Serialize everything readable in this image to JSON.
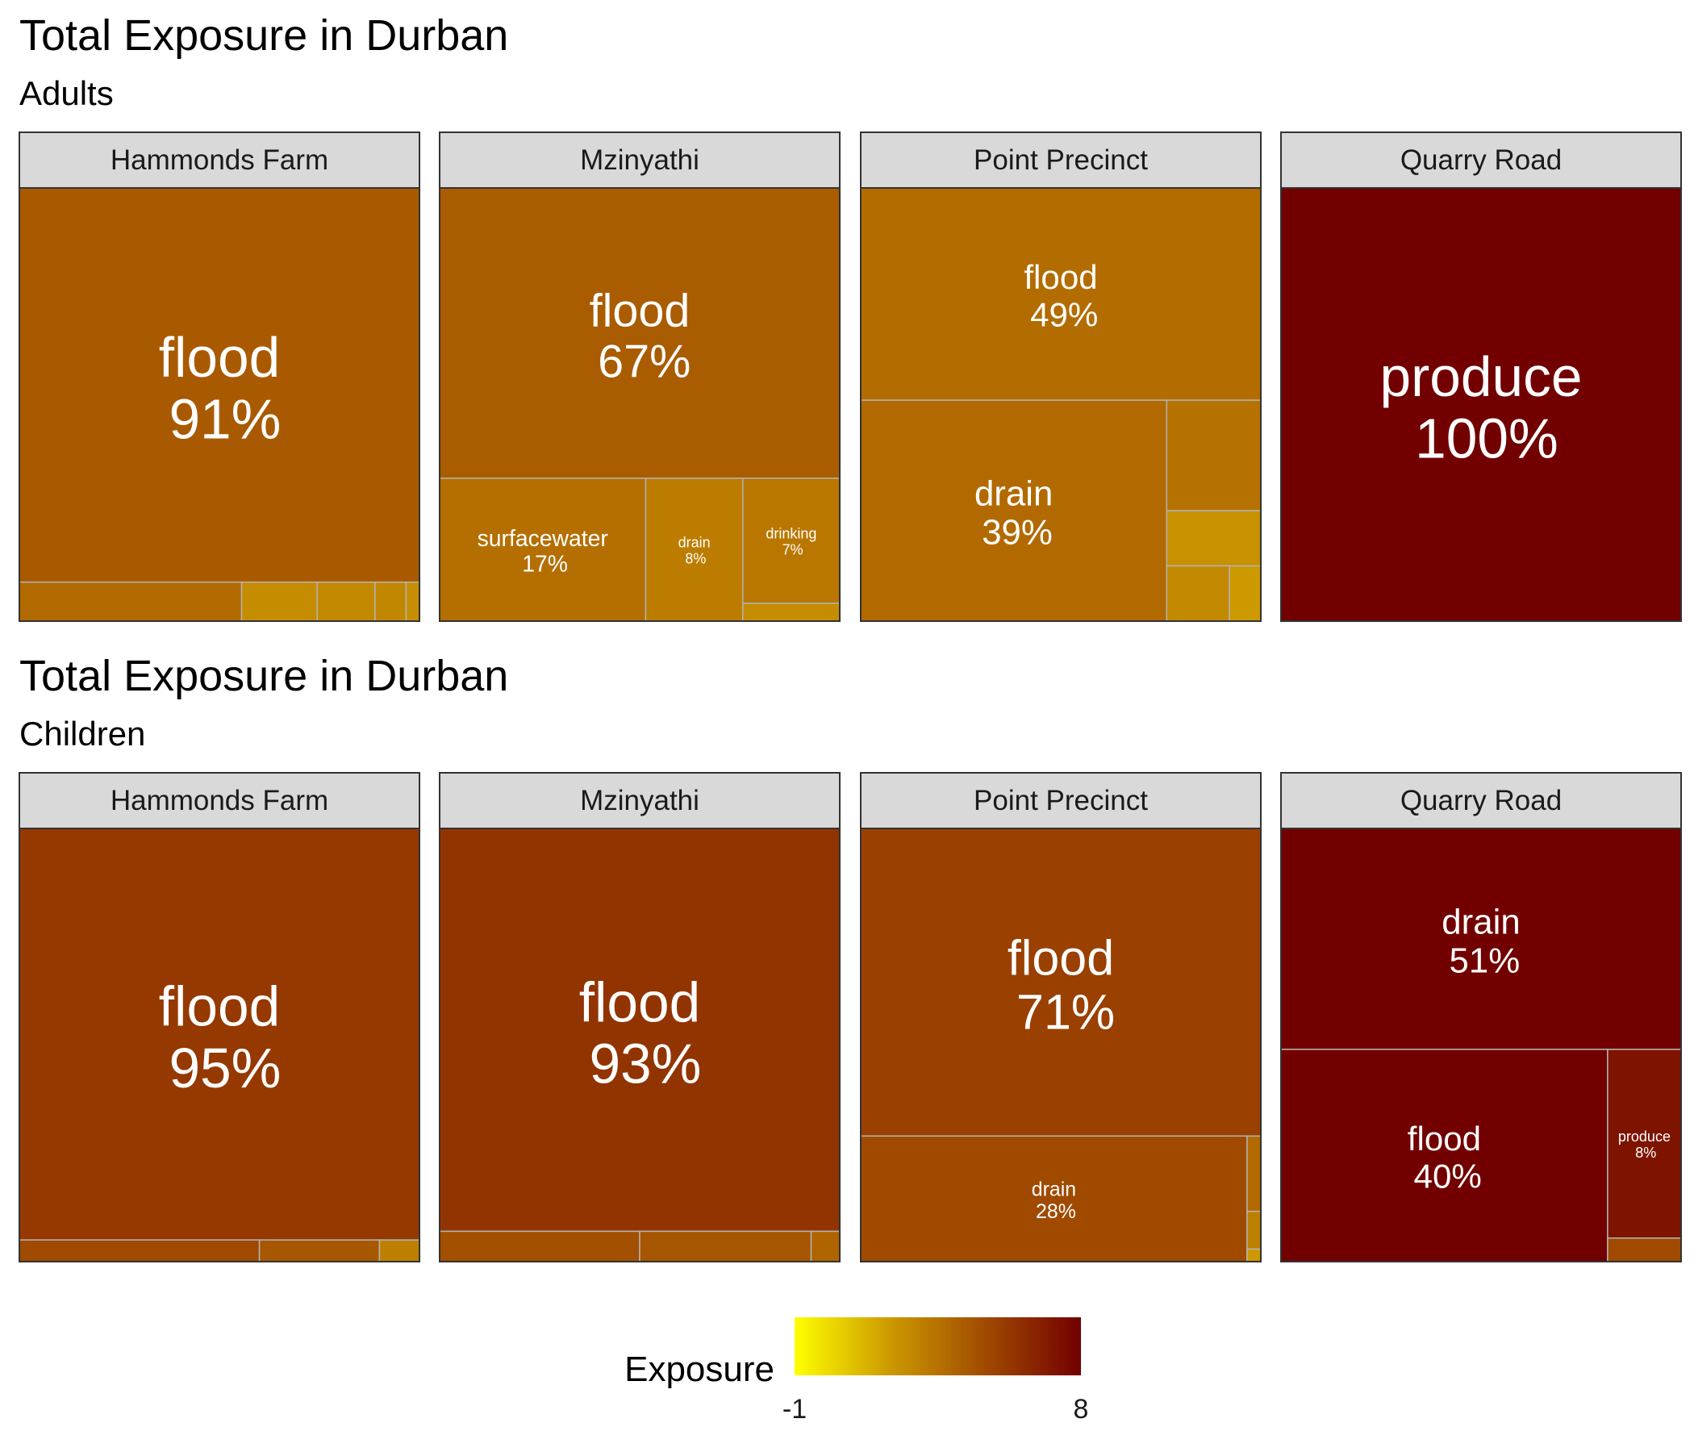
{
  "chart_data": [
    {
      "type": "treemap",
      "title": "Total Exposure in Durban",
      "subtitle": "Adults",
      "facets": [
        {
          "name": "Hammonds Farm",
          "tiles": [
            {
              "label": "flood",
              "percent": "91%",
              "share": 0.91,
              "exposure": 4.4
            },
            {
              "label": "",
              "percent": "",
              "share": 0.05,
              "exposure": 3.8
            },
            {
              "label": "",
              "percent": "",
              "share": 0.017,
              "exposure": 2.5
            },
            {
              "label": "",
              "percent": "",
              "share": 0.013,
              "exposure": 2.6
            },
            {
              "label": "",
              "percent": "",
              "share": 0.007,
              "exposure": 2.7
            },
            {
              "label": "",
              "percent": "",
              "share": 0.003,
              "exposure": 2.4
            }
          ]
        },
        {
          "name": "Mzinyathi",
          "tiles": [
            {
              "label": "flood",
              "percent": "67%",
              "share": 0.67,
              "exposure": 4.3
            },
            {
              "label": "surfacewater",
              "percent": "17%",
              "share": 0.17,
              "exposure": 3.6
            },
            {
              "label": "drain",
              "percent": "8%",
              "share": 0.08,
              "exposure": 3.1
            },
            {
              "label": "drinking",
              "percent": "7%",
              "share": 0.07,
              "exposure": 3.3
            },
            {
              "label": "",
              "percent": "",
              "share": 0.01,
              "exposure": 2.5
            }
          ]
        },
        {
          "name": "Point Precinct",
          "tiles": [
            {
              "label": "flood",
              "percent": "49%",
              "share": 0.49,
              "exposure": 3.7
            },
            {
              "label": "drain",
              "percent": "39%",
              "share": 0.39,
              "exposure": 3.8
            },
            {
              "label": "",
              "percent": "",
              "share": 0.06,
              "exposure": 3.5
            },
            {
              "label": "",
              "percent": "",
              "share": 0.03,
              "exposure": 2.3
            },
            {
              "label": "",
              "percent": "",
              "share": 0.02,
              "exposure": 2.6
            },
            {
              "label": "",
              "percent": "",
              "share": 0.01,
              "exposure": 2.0
            }
          ]
        },
        {
          "name": "Quarry Road",
          "tiles": [
            {
              "label": "produce",
              "percent": "100%",
              "share": 1.0,
              "exposure": 8.0
            }
          ]
        }
      ]
    },
    {
      "type": "treemap",
      "title": "Total Exposure in Durban",
      "subtitle": "Children",
      "facets": [
        {
          "name": "Hammonds Farm",
          "tiles": [
            {
              "label": "flood",
              "percent": "95%",
              "share": 0.95,
              "exposure": 5.7
            },
            {
              "label": "",
              "percent": "",
              "share": 0.03,
              "exposure": 5.0
            },
            {
              "label": "",
              "percent": "",
              "share": 0.015,
              "exposure": 4.5
            },
            {
              "label": "",
              "percent": "",
              "share": 0.005,
              "exposure": 3.0
            }
          ]
        },
        {
          "name": "Mzinyathi",
          "tiles": [
            {
              "label": "flood",
              "percent": "93%",
              "share": 0.93,
              "exposure": 5.9
            },
            {
              "label": "",
              "percent": "",
              "share": 0.035,
              "exposure": 4.8
            },
            {
              "label": "",
              "percent": "",
              "share": 0.03,
              "exposure": 4.6
            },
            {
              "label": "",
              "percent": "",
              "share": 0.005,
              "exposure": 4.0
            }
          ]
        },
        {
          "name": "Point Precinct",
          "tiles": [
            {
              "label": "flood",
              "percent": "71%",
              "share": 0.71,
              "exposure": 5.4
            },
            {
              "label": "drain",
              "percent": "28%",
              "share": 0.28,
              "exposure": 5.0
            },
            {
              "label": "",
              "percent": "",
              "share": 0.006,
              "exposure": 3.8
            },
            {
              "label": "",
              "percent": "",
              "share": 0.003,
              "exposure": 3.0
            },
            {
              "label": "",
              "percent": "",
              "share": 0.001,
              "exposure": 2.0
            }
          ]
        },
        {
          "name": "Quarry Road",
          "tiles": [
            {
              "label": "drain",
              "percent": "51%",
              "share": 0.51,
              "exposure": 8.0
            },
            {
              "label": "flood",
              "percent": "40%",
              "share": 0.4,
              "exposure": 8.0
            },
            {
              "label": "produce",
              "percent": "8%",
              "share": 0.08,
              "exposure": 7.2
            },
            {
              "label": "",
              "percent": "",
              "share": 0.01,
              "exposure": 5.0
            }
          ]
        }
      ]
    }
  ],
  "legend": {
    "title": "Exposure",
    "min": -1,
    "max": 8,
    "min_label": "-1",
    "max_label": "8",
    "colors": [
      "#ffff00",
      "#cc9900",
      "#a04a00",
      "#720000"
    ]
  }
}
